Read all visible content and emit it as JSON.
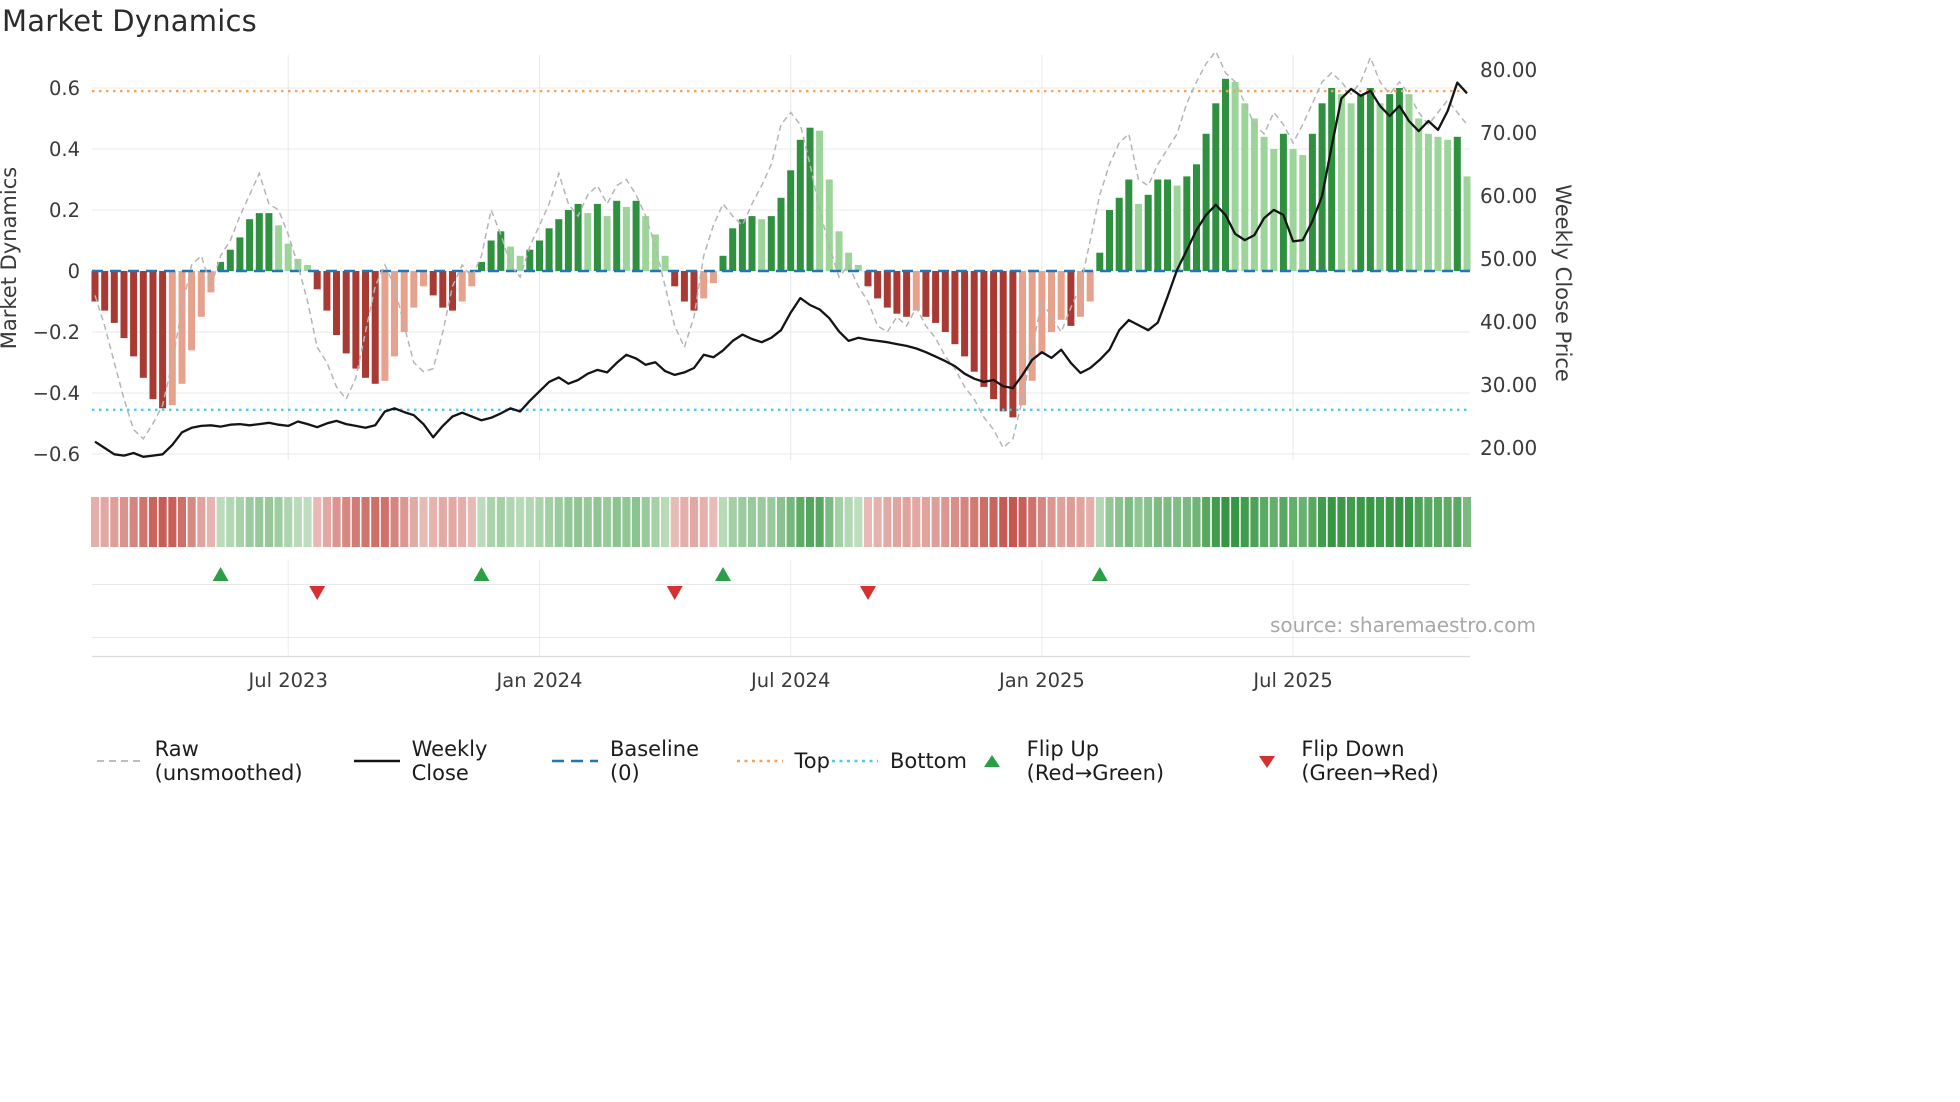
{
  "title": "Market Dynamics",
  "source": "source: sharemaestro.com",
  "colors": {
    "bar_neg_strong": "#a83a33",
    "bar_neg_weak": "#e6a28d",
    "bar_pos_strong": "#2f9140",
    "bar_pos_weak": "#9dd49a",
    "raw_line": "#b5b5b5",
    "close_line": "#141414",
    "baseline": "#1f77b4",
    "top_line": "#f3a45c",
    "bottom_line": "#4fc9ec",
    "flip_up": "#2c9e45",
    "flip_down": "#d63030",
    "grid": "#e8e8e8",
    "axis_text": "#3a3a3a",
    "source_text": "#a8a8a8",
    "strip_neg_hi": "#bb3b32",
    "strip_neg_lo": "#f7e4e2",
    "strip_pos_hi": "#369642",
    "strip_pos_lo": "#e1f0de"
  },
  "legend": [
    {
      "name": "raw",
      "label": "Raw (unsmoothed)",
      "swatch": "line-dashed",
      "color": "#b5b5b5"
    },
    {
      "name": "weekly-close",
      "label": "Weekly Close",
      "swatch": "line-solid",
      "color": "#141414"
    },
    {
      "name": "baseline",
      "label": "Baseline (0)",
      "swatch": "line-longdash",
      "color": "#1f77b4"
    },
    {
      "name": "top",
      "label": "Top",
      "swatch": "line-dotted",
      "color": "#f3a45c"
    },
    {
      "name": "bottom",
      "label": "Bottom",
      "swatch": "line-dotted",
      "color": "#4fc9ec"
    },
    {
      "name": "flip-up",
      "label": "Flip Up (Red→Green)",
      "swatch": "triangle-up",
      "color": "#2c9e45"
    },
    {
      "name": "flip-down",
      "label": "Flip Down (Green→Red)",
      "swatch": "triangle-down",
      "color": "#d63030"
    }
  ],
  "chart_data": {
    "type": "bar",
    "title": "Market Dynamics",
    "start_date": "2023-02-13",
    "frequency": "weekly",
    "n_weeks": 143,
    "axes": {
      "left": {
        "title": "Market Dynamics",
        "range": [
          -0.65,
          0.7
        ],
        "ticks": [
          {
            "label": "0.6",
            "value": 0.6
          },
          {
            "label": "0.4",
            "value": 0.4
          },
          {
            "label": "0.2",
            "value": 0.2
          },
          {
            "label": "0",
            "value": 0
          },
          {
            "label": "−0.2",
            "value": -0.2
          },
          {
            "label": "−0.4",
            "value": -0.4
          },
          {
            "label": "−0.6",
            "value": -0.6
          }
        ]
      },
      "right": {
        "title": "Weekly Close Price",
        "range": [
          18,
          81.5
        ],
        "ticks": [
          {
            "label": "80.00",
            "value": 80
          },
          {
            "label": "70.00",
            "value": 70
          },
          {
            "label": "60.00",
            "value": 60
          },
          {
            "label": "50.00",
            "value": 50
          },
          {
            "label": "40.00",
            "value": 40
          },
          {
            "label": "30.00",
            "value": 30
          },
          {
            "label": "20.00",
            "value": 20
          }
        ]
      },
      "x": {
        "ticks": [
          {
            "label": "Jul 2023",
            "week": 20
          },
          {
            "label": "Jan 2024",
            "week": 46
          },
          {
            "label": "Jul 2024",
            "week": 72
          },
          {
            "label": "Jan 2025",
            "week": 98
          },
          {
            "label": "Jul 2025",
            "week": 124
          }
        ]
      }
    },
    "reference_lines": [
      {
        "name": "Baseline (0)",
        "value": 0,
        "style": "longdash",
        "color": "#1f77b4"
      },
      {
        "name": "Top",
        "value": 0.59,
        "style": "dotted",
        "color": "#f3a45c"
      },
      {
        "name": "Bottom",
        "value": -0.455,
        "style": "dotted",
        "color": "#4fc9ec"
      }
    ],
    "flip_up_weeks": [
      13,
      40,
      65,
      104
    ],
    "flip_down_weeks": [
      23,
      60,
      80
    ],
    "series": [
      {
        "name": "Market Dynamics",
        "type": "bar",
        "axis": "left",
        "values": [
          -0.1,
          -0.13,
          -0.17,
          -0.22,
          -0.28,
          -0.35,
          -0.42,
          -0.45,
          -0.44,
          -0.37,
          -0.26,
          -0.15,
          -0.07,
          0.03,
          0.07,
          0.11,
          0.17,
          0.19,
          0.19,
          0.15,
          0.09,
          0.04,
          0.02,
          -0.06,
          -0.13,
          -0.21,
          -0.27,
          -0.32,
          -0.35,
          -0.37,
          -0.36,
          -0.28,
          -0.2,
          -0.12,
          -0.05,
          -0.08,
          -0.12,
          -0.13,
          -0.1,
          -0.05,
          0.03,
          0.1,
          0.13,
          0.08,
          0.05,
          0.07,
          0.1,
          0.14,
          0.17,
          0.2,
          0.22,
          0.19,
          0.22,
          0.18,
          0.23,
          0.21,
          0.23,
          0.18,
          0.12,
          0.05,
          -0.05,
          -0.1,
          -0.13,
          -0.09,
          -0.04,
          0.05,
          0.14,
          0.17,
          0.18,
          0.17,
          0.18,
          0.24,
          0.33,
          0.43,
          0.47,
          0.46,
          0.3,
          0.13,
          0.06,
          0.02,
          -0.05,
          -0.09,
          -0.12,
          -0.14,
          -0.15,
          -0.13,
          -0.15,
          -0.17,
          -0.2,
          -0.24,
          -0.28,
          -0.33,
          -0.38,
          -0.42,
          -0.46,
          -0.48,
          -0.44,
          -0.36,
          -0.27,
          -0.2,
          -0.16,
          -0.18,
          -0.15,
          -0.1,
          0.06,
          0.2,
          0.24,
          0.3,
          0.22,
          0.25,
          0.3,
          0.3,
          0.28,
          0.31,
          0.35,
          0.45,
          0.55,
          0.63,
          0.62,
          0.55,
          0.5,
          0.44,
          0.4,
          0.45,
          0.4,
          0.38,
          0.45,
          0.55,
          0.6,
          0.58,
          0.55,
          0.58,
          0.6,
          0.55,
          0.58,
          0.6,
          0.58,
          0.5,
          0.45,
          0.44,
          0.43,
          0.44,
          0.31
        ]
      },
      {
        "name": "Raw (unsmoothed)",
        "type": "line",
        "style": "dashed",
        "axis": "left",
        "values": [
          -0.08,
          -0.18,
          -0.3,
          -0.42,
          -0.52,
          -0.55,
          -0.5,
          -0.44,
          -0.3,
          -0.12,
          0.02,
          0.05,
          -0.05,
          0.05,
          0.1,
          0.18,
          0.25,
          0.32,
          0.22,
          0.2,
          0.12,
          0.02,
          -0.1,
          -0.25,
          -0.3,
          -0.38,
          -0.42,
          -0.35,
          -0.2,
          -0.05,
          0.02,
          -0.05,
          -0.18,
          -0.3,
          -0.33,
          -0.32,
          -0.2,
          -0.05,
          0.02,
          -0.02,
          0.05,
          0.2,
          0.12,
          0.02,
          -0.02,
          0.08,
          0.15,
          0.22,
          0.32,
          0.22,
          0.18,
          0.25,
          0.28,
          0.22,
          0.28,
          0.3,
          0.25,
          0.18,
          0.08,
          -0.05,
          -0.18,
          -0.25,
          -0.15,
          0.05,
          0.15,
          0.22,
          0.18,
          0.15,
          0.22,
          0.28,
          0.35,
          0.48,
          0.52,
          0.48,
          0.35,
          0.2,
          0.08,
          -0.02,
          0.02,
          -0.05,
          -0.1,
          -0.18,
          -0.2,
          -0.15,
          -0.18,
          -0.12,
          -0.18,
          -0.22,
          -0.28,
          -0.32,
          -0.38,
          -0.42,
          -0.48,
          -0.52,
          -0.58,
          -0.55,
          -0.42,
          -0.25,
          -0.1,
          -0.15,
          -0.2,
          -0.12,
          -0.05,
          0.1,
          0.25,
          0.35,
          0.42,
          0.45,
          0.3,
          0.28,
          0.35,
          0.4,
          0.45,
          0.55,
          0.62,
          0.68,
          0.72,
          0.65,
          0.62,
          0.55,
          0.48,
          0.45,
          0.52,
          0.48,
          0.42,
          0.48,
          0.55,
          0.62,
          0.65,
          0.62,
          0.58,
          0.62,
          0.7,
          0.62,
          0.58,
          0.62,
          0.58,
          0.52,
          0.48,
          0.52,
          0.56,
          0.52,
          0.48
        ]
      },
      {
        "name": "Weekly Close",
        "type": "line",
        "axis": "right",
        "values": [
          21.0,
          20.0,
          19.0,
          18.8,
          19.2,
          18.6,
          18.8,
          19.0,
          20.5,
          22.5,
          23.2,
          23.5,
          23.6,
          23.4,
          23.7,
          23.8,
          23.6,
          23.8,
          24.0,
          23.7,
          23.5,
          24.2,
          23.8,
          23.3,
          23.9,
          24.3,
          23.8,
          23.5,
          23.2,
          23.6,
          25.8,
          26.3,
          25.7,
          25.2,
          23.8,
          21.7,
          23.5,
          25.0,
          25.6,
          25.0,
          24.4,
          24.8,
          25.5,
          26.3,
          25.8,
          27.5,
          29.0,
          30.5,
          31.2,
          30.2,
          30.8,
          31.8,
          32.4,
          32.0,
          33.5,
          34.8,
          34.2,
          33.2,
          33.6,
          32.2,
          31.6,
          32.0,
          32.7,
          34.8,
          34.4,
          35.5,
          37.0,
          38.0,
          37.3,
          36.8,
          37.5,
          38.7,
          41.5,
          43.8,
          42.7,
          42.0,
          40.6,
          38.5,
          37.0,
          37.5,
          37.2,
          37.0,
          36.8,
          36.5,
          36.2,
          35.8,
          35.2,
          34.5,
          33.8,
          33.0,
          31.8,
          31.0,
          30.5,
          30.8,
          29.8,
          29.5,
          31.6,
          34.0,
          35.2,
          34.3,
          35.6,
          33.5,
          31.9,
          32.7,
          34.0,
          35.6,
          38.7,
          40.3,
          39.5,
          38.7,
          39.9,
          44.0,
          48.3,
          51.4,
          54.6,
          57.0,
          58.6,
          57.0,
          54.0,
          53.0,
          53.8,
          56.5,
          57.8,
          57.0,
          52.8,
          53.0,
          56.0,
          60.0,
          67.9,
          75.5,
          77.0,
          75.9,
          76.7,
          74.3,
          72.7,
          74.3,
          71.9,
          70.3,
          71.9,
          70.5,
          73.5,
          78.0,
          76.3
        ]
      }
    ]
  }
}
